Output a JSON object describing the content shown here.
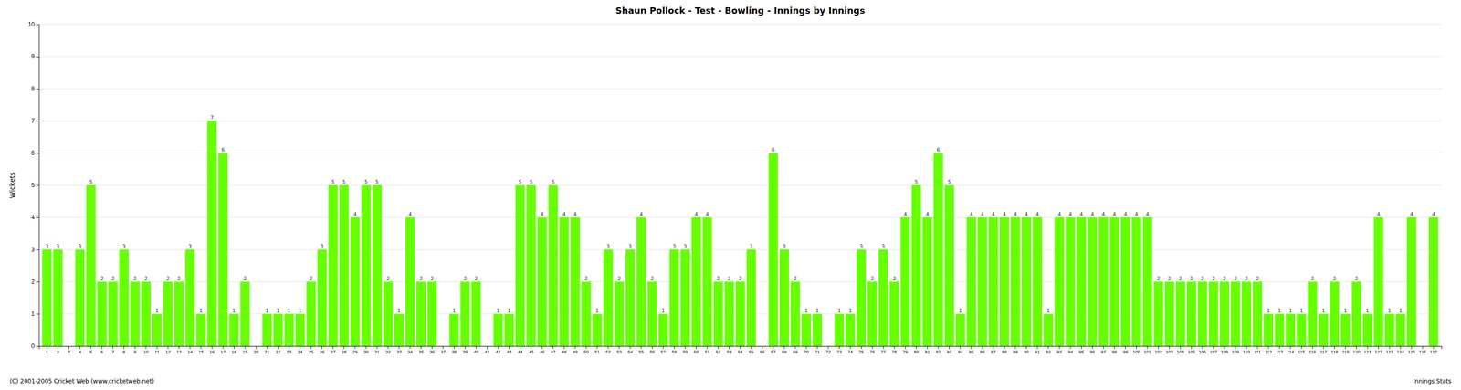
{
  "chart_data": {
    "type": "bar",
    "title": "Shaun Pollock - Test - Bowling - Innings by Innings",
    "ylabel": "Wickets",
    "categories": [
      "1",
      "2",
      "3",
      "4",
      "5",
      "6",
      "7",
      "8",
      "9",
      "10",
      "11",
      "12",
      "13",
      "14",
      "15",
      "16",
      "17",
      "18",
      "19",
      "20",
      "21",
      "22",
      "23",
      "24",
      "25",
      "26",
      "27",
      "28",
      "29",
      "30",
      "31",
      "32",
      "33",
      "34",
      "35",
      "36",
      "37",
      "38",
      "39",
      "40",
      "41",
      "42",
      "43",
      "44",
      "45",
      "46",
      "47",
      "48",
      "49",
      "50",
      "51",
      "52",
      "53",
      "54",
      "55",
      "56",
      "57",
      "58",
      "59",
      "60",
      "61",
      "62",
      "63",
      "64",
      "65",
      "66",
      "67",
      "68",
      "69",
      "70",
      "71",
      "72",
      "73",
      "74",
      "75",
      "76",
      "77",
      "78",
      "79",
      "80",
      "81",
      "82",
      "83",
      "84",
      "85",
      "86",
      "87",
      "88",
      "89",
      "90",
      "91",
      "92",
      "93",
      "94",
      "95",
      "96",
      "97",
      "98",
      "99",
      "100",
      "101",
      "102",
      "103",
      "104",
      "105",
      "106",
      "107",
      "108",
      "109",
      "110",
      "111",
      "112",
      "113",
      "114",
      "115",
      "116",
      "117",
      "118",
      "119",
      "120",
      "121",
      "122",
      "123",
      "124",
      "125",
      "126",
      "127"
    ],
    "values": [
      3,
      3,
      0,
      3,
      5,
      2,
      2,
      3,
      2,
      2,
      1,
      2,
      2,
      3,
      1,
      7,
      6,
      1,
      2,
      0,
      1,
      1,
      1,
      1,
      2,
      3,
      5,
      5,
      4,
      5,
      5,
      2,
      1,
      4,
      2,
      2,
      0,
      1,
      2,
      2,
      0,
      1,
      1,
      5,
      5,
      4,
      5,
      4,
      4,
      2,
      1,
      3,
      2,
      3,
      4,
      2,
      1,
      3,
      3,
      4,
      4,
      2,
      2,
      2,
      3,
      0,
      6,
      3,
      2,
      1,
      1,
      0,
      1,
      1,
      3,
      2,
      3,
      2,
      4,
      5,
      4,
      6,
      5,
      1,
      4,
      4,
      4,
      4,
      4,
      4,
      4,
      1,
      4,
      4,
      4,
      4,
      4,
      4,
      4,
      4,
      4,
      2,
      2,
      2,
      2,
      2,
      2,
      2,
      2,
      2,
      2,
      1,
      1,
      1,
      1,
      2,
      1,
      2,
      1,
      2,
      1,
      4,
      1,
      1,
      4,
      0,
      4
    ],
    "value_labels": [
      "3",
      "3",
      null,
      "3",
      "5",
      "2",
      "2",
      "3",
      "2",
      "2",
      "1",
      "2",
      "2",
      "3",
      "1",
      "7",
      "6",
      "1",
      "2",
      null,
      "1",
      "1",
      "1",
      "1",
      "2",
      "3",
      "5",
      "5",
      "4",
      "5",
      "5",
      "2",
      "1",
      "4",
      "2",
      "2",
      null,
      "1",
      "2",
      "2",
      null,
      "1",
      "1",
      "5",
      "5",
      "4",
      "5",
      "4",
      "4",
      "2",
      "1",
      "3",
      "2",
      "3",
      "4",
      "2",
      "1",
      "3",
      "3",
      "4",
      "4",
      "2",
      "2",
      "2",
      "3",
      null,
      "6",
      "3",
      "2",
      "1",
      "1",
      null,
      "1",
      "1",
      "3",
      "2",
      "3",
      "2",
      "4",
      "5",
      "4",
      "6",
      "5",
      "1",
      "4",
      "4",
      "4",
      "4",
      "4",
      "4",
      "4",
      "1",
      "4",
      "4",
      "4",
      "4",
      "4",
      "4",
      "4",
      "4",
      "4",
      "2",
      "2",
      "2",
      "2",
      "2",
      "2",
      "2",
      "2",
      "2",
      "2",
      "1",
      "1",
      "1",
      "1",
      "2",
      "1",
      "2",
      "1",
      "2",
      "1",
      "4",
      "1",
      "1",
      "4",
      null,
      "4"
    ],
    "data_labels": true,
    "color": "#66FF00",
    "ylim": [
      0,
      10
    ],
    "yticks": [
      0,
      1,
      2,
      3,
      4,
      5,
      6,
      7,
      8,
      9,
      10
    ],
    "grid": true,
    "annotations": [
      "(C) 2001-2005 Cricket Web (www.cricketweb.net)",
      "Innings Stats"
    ]
  }
}
